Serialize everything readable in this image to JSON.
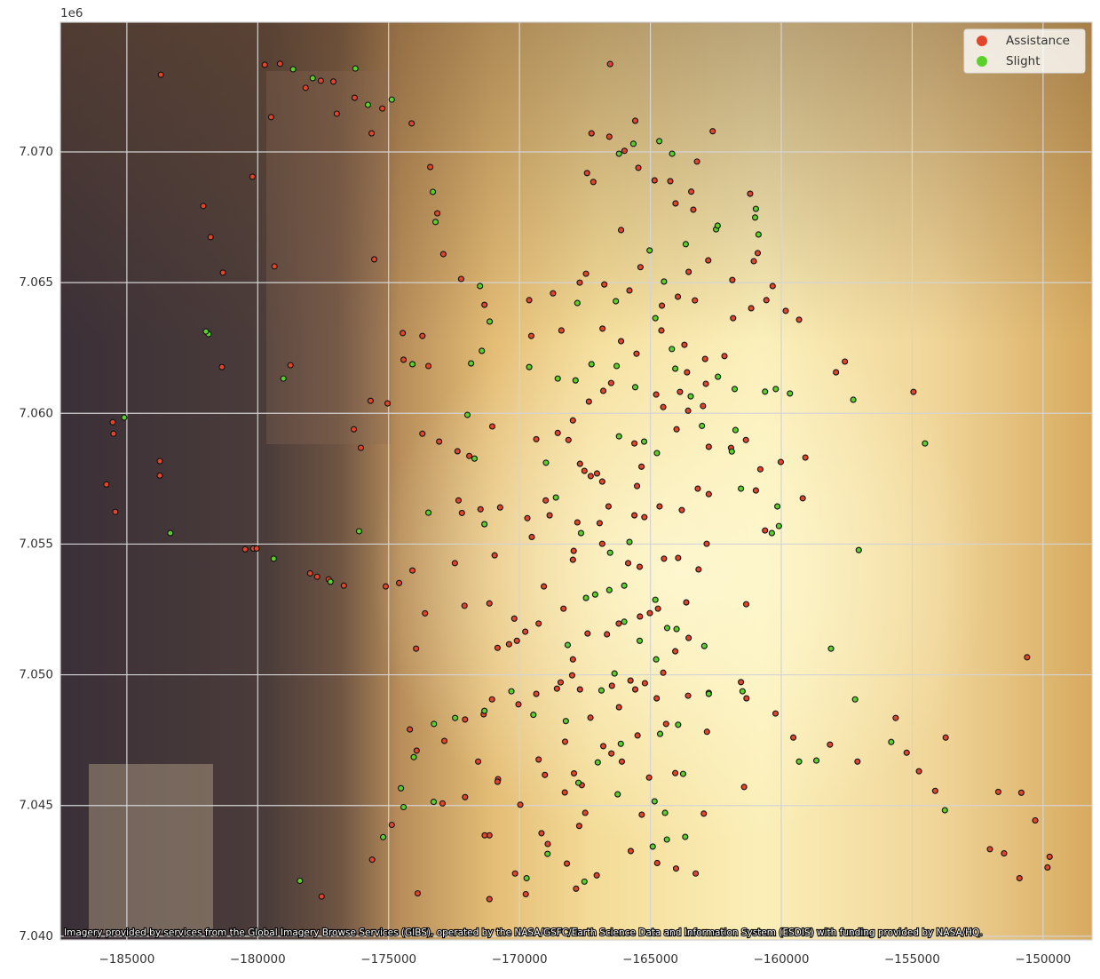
{
  "chart_data": {
    "type": "scatter",
    "y_offset_label": "1e6",
    "attribution": "Imagery provided by services from the Global Imagery Browse Services (GIBS), operated by the NASA/GSFC/Earth Science Data and Information System (ESDIS) with funding provided by NASA/HQ.",
    "xlim": [
      -187540,
      -148130
    ],
    "ylim": [
      7039860,
      7074960
    ],
    "xticks": [
      {
        "value": -185000,
        "label": "−185000"
      },
      {
        "value": -180000,
        "label": "−180000"
      },
      {
        "value": -175000,
        "label": "−175000"
      },
      {
        "value": -170000,
        "label": "−170000"
      },
      {
        "value": -165000,
        "label": "−165000"
      },
      {
        "value": -160000,
        "label": "−160000"
      },
      {
        "value": -155000,
        "label": "−155000"
      },
      {
        "value": -150000,
        "label": "−150000"
      }
    ],
    "yticks": [
      {
        "value": 7040000,
        "label": "7.040"
      },
      {
        "value": 7045000,
        "label": "7.045"
      },
      {
        "value": 7050000,
        "label": "7.050"
      },
      {
        "value": 7055000,
        "label": "7.055"
      },
      {
        "value": 7060000,
        "label": "7.060"
      },
      {
        "value": 7065000,
        "label": "7.065"
      },
      {
        "value": 7070000,
        "label": "7.070"
      }
    ],
    "grid": true,
    "legend": "upper-right",
    "series": [
      {
        "name": "Assistance",
        "color": "#e2452b",
        "x": [
          -183700,
          -179730,
          -179150,
          -178170,
          -177590,
          -177110,
          -176300,
          -179490,
          -176980,
          -175650,
          -174120,
          -175240,
          -180200,
          -182080,
          -181800,
          -181330,
          -179360,
          -175550,
          -181370,
          -178750,
          -175690,
          -175040,
          -176330,
          -176060,
          -185540,
          -185510,
          -185780,
          -185440,
          -183740,
          -183740,
          -180480,
          -180170,
          -180040,
          -178000,
          -177730,
          -177290,
          -176710,
          -175110,
          -174600,
          -174090,
          -173610,
          -173950,
          -174430,
          -173710,
          -173410,
          -173140,
          -172910,
          -172230,
          -171340,
          -174460,
          -173480,
          -173070,
          -173710,
          -172370,
          -171920,
          -171040,
          -172330,
          -172200,
          -171490,
          -170740,
          -172470,
          -172100,
          -171150,
          -170950,
          -170840,
          -170200,
          -170100,
          -171050,
          -172080,
          -171370,
          -174190,
          -173930,
          -172870,
          -171580,
          -170820,
          -170040,
          -169360,
          -169270,
          -168260,
          -169030,
          -167920,
          -171150,
          -171330,
          -170170,
          -169760,
          -168920,
          -168190,
          -167840,
          -167050,
          -171150,
          -177560,
          -173890,
          -175630,
          -174880,
          -172940,
          -172080,
          -170840,
          -169970,
          -167720,
          -165750,
          -165330,
          -164740,
          -164020,
          -163270,
          -162960,
          -161420,
          -164050,
          -165050,
          -166090,
          -166490,
          -166800,
          -167290,
          -166200,
          -165760,
          -164760,
          -163560,
          -162770,
          -161540,
          -161330,
          -160220,
          -159540,
          -158140,
          -157090,
          -155630,
          -155210,
          -154740,
          -154120,
          -153720,
          -151710,
          -150830,
          -152030,
          -151490,
          -150900,
          -150300,
          -149750,
          -149830,
          -150610,
          -154950,
          -157570,
          -157910,
          -159080,
          -159180,
          -160020,
          -159320,
          -159830,
          -160570,
          -160330,
          -161150,
          -161840,
          -161050,
          -160900,
          -161190,
          -162620,
          -163220,
          -163440,
          -163360,
          -164040,
          -164240,
          -165460,
          -165580,
          -166540,
          -167250,
          -166570,
          -165990,
          -167420,
          -167180,
          -164840,
          -166120,
          -165380,
          -163950,
          -163540,
          -162790,
          -161870,
          -163300,
          -164560,
          -165800,
          -166760,
          -167460,
          -167700,
          -168720,
          -169630,
          -169550,
          -168400,
          -166830,
          -166120,
          -165530,
          -164580,
          -163700,
          -163600,
          -162910,
          -162170,
          -162880,
          -163870,
          -164780,
          -164510,
          -163560,
          -162990,
          -164000,
          -162770,
          -161920,
          -161350,
          -160800,
          -160970,
          -160620,
          -162770,
          -163190,
          -163800,
          -164650,
          -165230,
          -165610,
          -166600,
          -166940,
          -167790,
          -168850,
          -169000,
          -169700,
          -169530,
          -169360,
          -168540,
          -168130,
          -167960,
          -167350,
          -166800,
          -166500,
          -167690,
          -167520,
          -167280,
          -167040,
          -166840,
          -165610,
          -165340,
          -165510,
          -167930,
          -167960,
          -166840,
          -165850,
          -165410,
          -164480,
          -163940,
          -163160,
          -162850,
          -163630,
          -164710,
          -165020,
          -165400,
          -166210,
          -166660,
          -167400,
          -168320,
          -169070,
          -169270,
          -169780,
          -170400,
          -167960,
          -167990,
          -168430,
          -168570,
          -167690,
          -166470,
          -165580,
          -165210,
          -164510,
          -164050,
          -163540,
          -161340,
          -162840,
          -164400,
          -165490,
          -167620,
          -168270,
          -169160,
          -167490
        ],
        "values": [
          7072950,
          7073330,
          7073370,
          7072450,
          7072720,
          7072690,
          7072070,
          7071330,
          7071460,
          7070710,
          7071090,
          7071660,
          7069050,
          7067930,
          7066740,
          7065380,
          7065620,
          7065890,
          7061770,
          7061840,
          7060480,
          7060380,
          7059390,
          7058680,
          7059660,
          7059220,
          7057280,
          7056230,
          7058170,
          7057620,
          7054800,
          7054830,
          7054830,
          7053880,
          7053750,
          7053650,
          7053410,
          7053380,
          7053510,
          7053990,
          7052350,
          7051000,
          7062050,
          7062960,
          7069420,
          7067650,
          7066090,
          7065140,
          7064150,
          7063070,
          7061810,
          7058920,
          7059220,
          7058550,
          7058370,
          7059500,
          7056670,
          7056190,
          7056330,
          7056400,
          7054270,
          7052640,
          7052730,
          7054570,
          7051030,
          7052150,
          7051300,
          7049060,
          7048290,
          7048490,
          7047910,
          7047100,
          7047470,
          7046680,
          7046010,
          7048870,
          7049270,
          7046760,
          7047440,
          7046170,
          7046230,
          7043860,
          7043860,
          7042400,
          7041610,
          7043530,
          7042780,
          7041820,
          7042330,
          7041420,
          7041520,
          7041640,
          7042930,
          7044260,
          7045080,
          7045320,
          7045910,
          7045030,
          7044220,
          7043260,
          7044650,
          7042800,
          7042590,
          7042400,
          7044690,
          7045710,
          7046240,
          7046070,
          7046680,
          7046990,
          7047270,
          7048360,
          7048760,
          7049780,
          7049100,
          7049200,
          7049310,
          7049720,
          7049100,
          7048520,
          7047600,
          7047330,
          7046680,
          7048350,
          7047020,
          7046310,
          7045560,
          7047600,
          7045520,
          7045490,
          7043330,
          7043170,
          7042220,
          7044430,
          7043040,
          7042630,
          7050670,
          7060820,
          7061980,
          7061570,
          7058310,
          7056750,
          7058140,
          7063580,
          7063920,
          7064330,
          7064870,
          7064020,
          7063640,
          7065820,
          7066130,
          7068400,
          7070790,
          7069630,
          7068480,
          7067790,
          7068030,
          7068880,
          7069390,
          7071190,
          7073360,
          7070710,
          7070580,
          7070040,
          7069190,
          7068850,
          7068910,
          7067010,
          7065590,
          7064460,
          7065410,
          7065850,
          7065100,
          7064320,
          7064120,
          7064700,
          7064930,
          7065340,
          7065000,
          7064590,
          7064330,
          7062960,
          7063170,
          7063240,
          7062760,
          7062280,
          7063170,
          7062620,
          7061570,
          7062080,
          7062190,
          7061130,
          7060820,
          7060720,
          7060240,
          7060100,
          7060280,
          7059390,
          7058720,
          7058680,
          7058980,
          7057860,
          7057050,
          7055520,
          7056910,
          7057120,
          7056300,
          7056440,
          7056030,
          7056100,
          7056440,
          7055800,
          7055830,
          7056100,
          7056670,
          7055990,
          7055270,
          7059010,
          7059250,
          7058980,
          7059730,
          7060450,
          7060860,
          7061160,
          7058070,
          7057800,
          7057600,
          7057700,
          7057390,
          7058850,
          7057960,
          7057220,
          7054740,
          7054400,
          7055010,
          7054270,
          7054130,
          7054440,
          7054470,
          7054030,
          7055010,
          7052770,
          7052530,
          7052360,
          7052230,
          7051960,
          7051550,
          7051580,
          7052530,
          7053380,
          7051960,
          7051650,
          7051170,
          7050590,
          7049980,
          7049710,
          7049470,
          7049440,
          7049580,
          7049440,
          7049680,
          7050080,
          7050900,
          7051410,
          7052700,
          7047820,
          7048120,
          7047680,
          7045780,
          7045500,
          7043940,
          7044720
        ]
      },
      {
        "name": "Slight",
        "color": "#5bd02a",
        "x": [
          -185100,
          -183340,
          -181880,
          -181980,
          -178650,
          -177900,
          -176270,
          -175790,
          -174880,
          -179020,
          -179390,
          -177220,
          -176130,
          -173480,
          -174090,
          -173310,
          -173210,
          -171510,
          -171140,
          -171850,
          -171440,
          -171990,
          -171720,
          -171340,
          -169630,
          -168990,
          -168610,
          -168540,
          -167650,
          -167860,
          -167250,
          -166290,
          -165580,
          -166200,
          -165240,
          -164750,
          -164050,
          -163030,
          -162420,
          -161780,
          -161890,
          -161750,
          -161540,
          -160620,
          -160210,
          -159670,
          -160150,
          -160360,
          -160090,
          -157250,
          -157040,
          -158100,
          -157180,
          -159320,
          -158660,
          -155800,
          -154510,
          -153750,
          -161480,
          -166200,
          -165650,
          -164660,
          -164170,
          -165030,
          -164480,
          -162490,
          -162430,
          -160970,
          -161000,
          -160870,
          -163650,
          -167790,
          -166320,
          -164810,
          -164180,
          -163460,
          -165800,
          -166540,
          -166000,
          -167110,
          -167460,
          -166570,
          -166000,
          -165410,
          -164810,
          -164360,
          -164000,
          -162940,
          -162770,
          -163940,
          -164630,
          -166370,
          -166870,
          -168160,
          -168230,
          -169470,
          -170310,
          -171340,
          -172460,
          -173270,
          -174040,
          -174530,
          -174430,
          -173280,
          -175210,
          -178390,
          -169730,
          -167520,
          -166250,
          -167750,
          -166130,
          -164840,
          -164440,
          -164910,
          -164370,
          -163670,
          -163750,
          -167010,
          -164780,
          -168930
        ],
        "values": [
          7059840,
          7055420,
          7063030,
          7063130,
          7073160,
          7072820,
          7073190,
          7071800,
          7072000,
          7061330,
          7054440,
          7053560,
          7055490,
          7056200,
          7061880,
          7068470,
          7067320,
          7064870,
          7063510,
          7061910,
          7062390,
          7059940,
          7058270,
          7055760,
          7061770,
          7058110,
          7056780,
          7061330,
          7055420,
          7061260,
          7061880,
          7061810,
          7061000,
          7059120,
          7058920,
          7058480,
          7061710,
          7059520,
          7061400,
          7060930,
          7058540,
          7059360,
          7057120,
          7060830,
          7060930,
          7060760,
          7056440,
          7055420,
          7055690,
          7060520,
          7054770,
          7051000,
          7049060,
          7046680,
          7046720,
          7047430,
          7058850,
          7044820,
          7049370,
          7069930,
          7070310,
          7070410,
          7069930,
          7066230,
          7065040,
          7067040,
          7067180,
          7067820,
          7067490,
          7066840,
          7066470,
          7064220,
          7064290,
          7063640,
          7062460,
          7060650,
          7055080,
          7054670,
          7053410,
          7053070,
          7052940,
          7053240,
          7052030,
          7051300,
          7052870,
          7051790,
          7051750,
          7051100,
          7049270,
          7048090,
          7047740,
          7050050,
          7049400,
          7051140,
          7048230,
          7048470,
          7049370,
          7048620,
          7048350,
          7048120,
          7046850,
          7045660,
          7044940,
          7045140,
          7043790,
          7042120,
          7042220,
          7042090,
          7045430,
          7045870,
          7047360,
          7045160,
          7044720,
          7043430,
          7043700,
          7043800,
          7046210,
          7046650,
          7050590,
          7043150
        ]
      }
    ]
  }
}
